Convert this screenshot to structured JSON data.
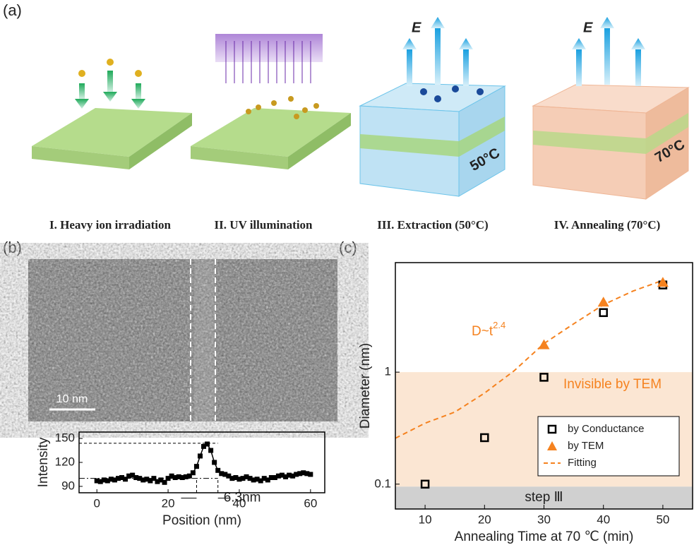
{
  "panel_labels": [
    "(a)",
    "(b)",
    "(c)"
  ],
  "schematic": {
    "steps": [
      "I. Heavy ion irradiation",
      "II. UV illumination",
      "III. Extraction (50°C)",
      "IV. Annealing (70°C)"
    ],
    "field": "E",
    "temps": [
      "50°C",
      "70°C"
    ]
  },
  "tem_image": {
    "scale_bar": "10 nm"
  },
  "chart_data": [
    {
      "type": "line",
      "xlabel": "Position (nm)",
      "ylabel": "Intensity",
      "color": "#000000",
      "x": [
        0,
        1,
        2,
        3,
        4,
        5,
        6,
        7,
        8,
        9,
        10,
        11,
        12,
        13,
        14,
        15,
        16,
        17,
        18,
        19,
        20,
        21,
        22,
        23,
        24,
        25,
        26,
        27,
        28,
        29,
        30,
        31,
        32,
        33,
        34,
        35,
        36,
        37,
        38,
        39,
        40,
        41,
        42,
        43,
        44,
        45,
        46,
        47,
        48,
        49,
        50,
        51,
        52,
        53,
        54,
        55,
        56,
        57,
        58,
        59,
        60
      ],
      "values": [
        97,
        96,
        98,
        97,
        99,
        98,
        100,
        101,
        99,
        103,
        104,
        101,
        100,
        98,
        99,
        97,
        100,
        96,
        98,
        95,
        100,
        103,
        101,
        102,
        101,
        102,
        103,
        107,
        115,
        128,
        140,
        143,
        135,
        120,
        110,
        106,
        105,
        103,
        100,
        101,
        99,
        100,
        102,
        100,
        98,
        99,
        97,
        100,
        98,
        101,
        101,
        103,
        104,
        102,
        104,
        103,
        105,
        106,
        107,
        106,
        105
      ],
      "xlim": [
        -5,
        64
      ],
      "ylim": [
        82,
        158
      ],
      "xticks": [
        0,
        20,
        40,
        60
      ],
      "yticks": [
        90,
        120,
        150
      ],
      "ref_x": [
        28,
        34
      ],
      "ref_y": [
        100,
        144
      ],
      "annotation": "6.3nm"
    },
    {
      "type": "scatter",
      "xlabel": "Annealing Time at 70 ℃ (min)",
      "ylabel": "Diameter (nm)",
      "log_y": true,
      "xlim": [
        5,
        55
      ],
      "ylim": [
        0.06,
        9.5
      ],
      "xticks": [
        10,
        20,
        30,
        40,
        50
      ],
      "yticks": [
        0.1,
        1
      ],
      "series": [
        {
          "name": "by Conductance",
          "color": "#000000",
          "marker": "open-square",
          "x": [
            10,
            20,
            30,
            40,
            50
          ],
          "values": [
            0.1,
            0.26,
            0.9,
            3.4,
            6
          ]
        },
        {
          "name": "by TEM",
          "color": "#f5821f",
          "marker": "triangle",
          "x": [
            30,
            40,
            50
          ],
          "values": [
            1.75,
            4.2,
            6.3
          ]
        },
        {
          "name": "Fitting",
          "color": "#f5821f",
          "marker": "dashed-line",
          "x": [
            5,
            10,
            15,
            20,
            25,
            30,
            35,
            40,
            45,
            50
          ],
          "values": [
            0.257,
            0.35,
            0.44,
            0.65,
            1.03,
            1.8,
            2.7,
            4.0,
            5.3,
            6.6
          ]
        }
      ],
      "regions": [
        {
          "label": "Invisible by TEM",
          "range": [
            0.095,
            1
          ],
          "color": "#fbe6d3"
        },
        {
          "label": "step Ⅲ",
          "range": [
            0.06,
            0.095
          ],
          "color": "#d0d0d0"
        }
      ],
      "annotation": {
        "text": "D~t",
        "sup": "2.4"
      }
    }
  ]
}
